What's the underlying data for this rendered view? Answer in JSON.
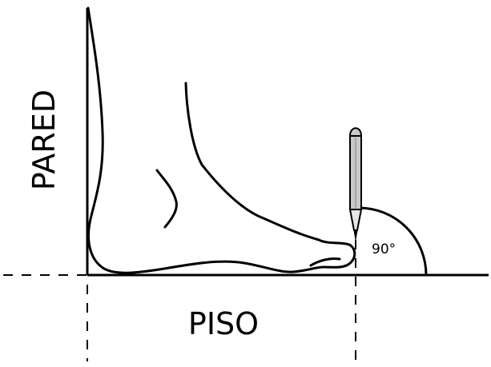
{
  "labels": {
    "wall": "PARED",
    "floor": "PISO",
    "angle": "90°"
  },
  "colors": {
    "ink": "#000000",
    "pencil_body": "#c8c8c8",
    "pencil_tip": "#e6e6e6",
    "background": "#ffffff"
  },
  "icons": {
    "foot": "foot-outline-icon",
    "pencil": "pencil-icon"
  }
}
